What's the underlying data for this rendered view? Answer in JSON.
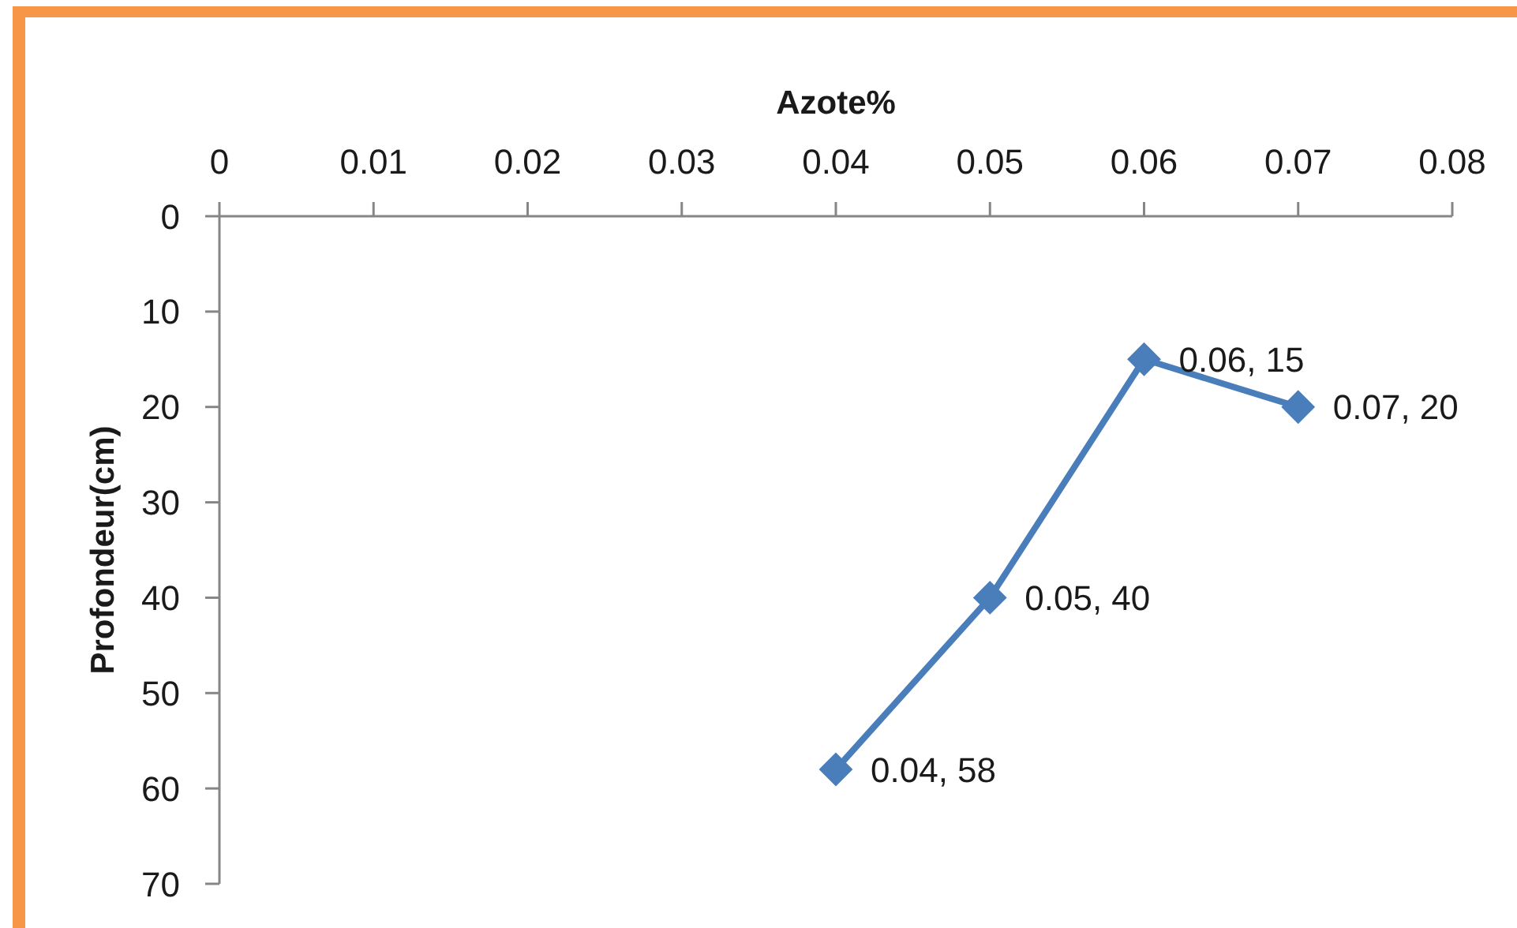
{
  "chart_data": {
    "type": "line",
    "xlabel": "Azote%",
    "ylabel": "Profondeur(cm)",
    "x": [
      0.04,
      0.05,
      0.06,
      0.07
    ],
    "values": [
      58,
      40,
      15,
      20
    ],
    "color": "#4a7ebb",
    "value_labels": [
      "0.04, 58",
      "0.05, 40",
      "0.06, 15",
      "0.07, 20"
    ],
    "xlim": [
      0,
      0.08
    ],
    "xticks": [
      0,
      0.01,
      0.02,
      0.03,
      0.04,
      0.05,
      0.06,
      0.07,
      0.08
    ],
    "ylim": [
      70,
      0
    ],
    "yticks": [
      0,
      10,
      20,
      30,
      40,
      50,
      60,
      70
    ],
    "marker": "diamond",
    "line_style": "solid"
  }
}
